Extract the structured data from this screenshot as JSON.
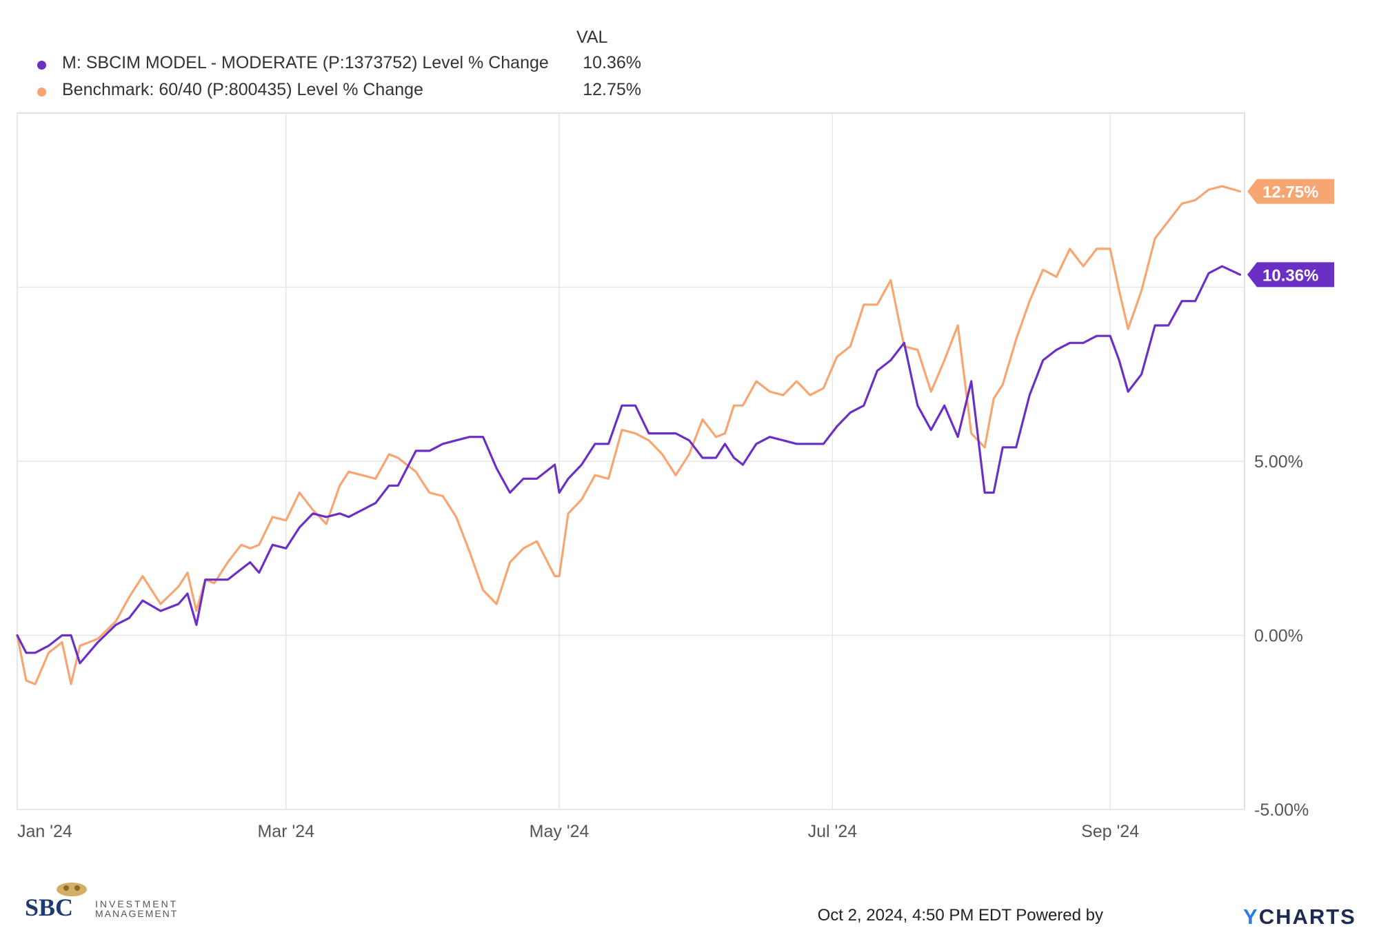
{
  "legend": {
    "value_header": "VAL",
    "entries": [
      {
        "name": "M: SBCIM MODEL - MODERATE (P:1373752) Level % Change",
        "value": "10.36%",
        "color": "#6a2fc4"
      },
      {
        "name": "Benchmark: 60/40 (P:800435) Level % Change",
        "value": "12.75%",
        "color": "#f7a571"
      }
    ]
  },
  "footer": {
    "timestamp": "Oct 2, 2024, 4:50 PM EDT Powered by",
    "logo_text": "YCHARTS"
  },
  "branding": {
    "logo_letters": "SBC",
    "logo_line1": "INVESTMENT",
    "logo_line2": "MANAGEMENT"
  },
  "chart_data": {
    "type": "line",
    "xlabel": "",
    "ylabel": "",
    "x_ticks": [
      "Jan '24",
      "Mar '24",
      "May '24",
      "Jul '24",
      "Sep '24"
    ],
    "x_tick_dates": [
      "2024-01-01",
      "2024-03-01",
      "2024-05-01",
      "2024-07-01",
      "2024-09-01"
    ],
    "x_range": [
      "2024-01-01",
      "2024-10-01"
    ],
    "y_ticks": [
      -5,
      0,
      5,
      10
    ],
    "y_tick_labels": [
      "-5.00%",
      "0.00%",
      "5.00%",
      ""
    ],
    "ylim": [
      -5,
      15
    ],
    "grid": true,
    "legend_position": "top-left",
    "series": [
      {
        "name": "M: SBCIM MODEL - MODERATE (P:1373752) Level % Change",
        "color": "#6a2fc4",
        "end_label": "10.36%",
        "x": [
          "2024-01-01",
          "2024-01-03",
          "2024-01-05",
          "2024-01-08",
          "2024-01-11",
          "2024-01-13",
          "2024-01-15",
          "2024-01-19",
          "2024-01-23",
          "2024-01-26",
          "2024-01-29",
          "2024-02-02",
          "2024-02-06",
          "2024-02-08",
          "2024-02-10",
          "2024-02-12",
          "2024-02-14",
          "2024-02-17",
          "2024-02-20",
          "2024-02-22",
          "2024-02-24",
          "2024-02-27",
          "2024-03-01",
          "2024-03-04",
          "2024-03-07",
          "2024-03-10",
          "2024-03-13",
          "2024-03-15",
          "2024-03-18",
          "2024-03-21",
          "2024-03-24",
          "2024-03-26",
          "2024-03-30",
          "2024-04-02",
          "2024-04-05",
          "2024-04-08",
          "2024-04-11",
          "2024-04-14",
          "2024-04-17",
          "2024-04-20",
          "2024-04-23",
          "2024-04-26",
          "2024-04-30",
          "2024-05-01",
          "2024-05-03",
          "2024-05-06",
          "2024-05-09",
          "2024-05-12",
          "2024-05-15",
          "2024-05-18",
          "2024-05-21",
          "2024-05-24",
          "2024-05-27",
          "2024-05-30",
          "2024-06-02",
          "2024-06-05",
          "2024-06-07",
          "2024-06-09",
          "2024-06-11",
          "2024-06-14",
          "2024-06-17",
          "2024-06-20",
          "2024-06-23",
          "2024-06-26",
          "2024-06-29",
          "2024-07-02",
          "2024-07-05",
          "2024-07-08",
          "2024-07-11",
          "2024-07-14",
          "2024-07-17",
          "2024-07-20",
          "2024-07-23",
          "2024-07-26",
          "2024-07-29",
          "2024-08-01",
          "2024-08-04",
          "2024-08-06",
          "2024-08-08",
          "2024-08-11",
          "2024-08-14",
          "2024-08-17",
          "2024-08-20",
          "2024-08-23",
          "2024-08-26",
          "2024-08-29",
          "2024-09-01",
          "2024-09-03",
          "2024-09-05",
          "2024-09-08",
          "2024-09-11",
          "2024-09-14",
          "2024-09-17",
          "2024-09-20",
          "2024-09-23",
          "2024-09-26",
          "2024-09-30"
        ],
        "y": [
          0.0,
          -0.5,
          -0.5,
          -0.3,
          0.0,
          0.0,
          -0.8,
          -0.2,
          0.3,
          0.5,
          1.0,
          0.7,
          0.9,
          1.2,
          0.3,
          1.6,
          1.6,
          1.6,
          1.9,
          2.1,
          1.8,
          2.6,
          2.5,
          3.1,
          3.5,
          3.4,
          3.5,
          3.4,
          3.6,
          3.8,
          4.3,
          4.3,
          5.3,
          5.3,
          5.5,
          5.6,
          5.7,
          5.7,
          4.8,
          4.1,
          4.5,
          4.5,
          4.9,
          4.1,
          4.5,
          4.9,
          5.5,
          5.5,
          6.6,
          6.6,
          5.8,
          5.8,
          5.8,
          5.6,
          5.1,
          5.1,
          5.5,
          5.1,
          4.9,
          5.5,
          5.7,
          5.6,
          5.5,
          5.5,
          5.5,
          6.0,
          6.4,
          6.6,
          7.6,
          7.9,
          8.4,
          6.6,
          5.9,
          6.6,
          5.7,
          7.3,
          4.1,
          4.1,
          5.4,
          5.4,
          6.9,
          7.9,
          8.2,
          8.4,
          8.4,
          8.6,
          8.6,
          7.9,
          7.0,
          7.5,
          8.9,
          8.9,
          9.6,
          9.6,
          10.4,
          10.6,
          10.36
        ]
      },
      {
        "name": "Benchmark: 60/40 (P:800435) Level % Change",
        "color": "#f7a571",
        "end_label": "12.75%",
        "x": [
          "2024-01-01",
          "2024-01-03",
          "2024-01-05",
          "2024-01-08",
          "2024-01-11",
          "2024-01-13",
          "2024-01-15",
          "2024-01-19",
          "2024-01-23",
          "2024-01-26",
          "2024-01-29",
          "2024-02-02",
          "2024-02-06",
          "2024-02-08",
          "2024-02-10",
          "2024-02-12",
          "2024-02-14",
          "2024-02-17",
          "2024-02-20",
          "2024-02-22",
          "2024-02-24",
          "2024-02-27",
          "2024-03-01",
          "2024-03-04",
          "2024-03-07",
          "2024-03-10",
          "2024-03-13",
          "2024-03-15",
          "2024-03-18",
          "2024-03-21",
          "2024-03-24",
          "2024-03-26",
          "2024-03-30",
          "2024-04-02",
          "2024-04-05",
          "2024-04-08",
          "2024-04-11",
          "2024-04-14",
          "2024-04-17",
          "2024-04-20",
          "2024-04-23",
          "2024-04-26",
          "2024-04-30",
          "2024-05-01",
          "2024-05-03",
          "2024-05-06",
          "2024-05-09",
          "2024-05-12",
          "2024-05-15",
          "2024-05-18",
          "2024-05-21",
          "2024-05-24",
          "2024-05-27",
          "2024-05-30",
          "2024-06-02",
          "2024-06-05",
          "2024-06-07",
          "2024-06-09",
          "2024-06-11",
          "2024-06-14",
          "2024-06-17",
          "2024-06-20",
          "2024-06-23",
          "2024-06-26",
          "2024-06-29",
          "2024-07-02",
          "2024-07-05",
          "2024-07-08",
          "2024-07-11",
          "2024-07-14",
          "2024-07-17",
          "2024-07-20",
          "2024-07-23",
          "2024-07-26",
          "2024-07-29",
          "2024-08-01",
          "2024-08-04",
          "2024-08-06",
          "2024-08-08",
          "2024-08-11",
          "2024-08-14",
          "2024-08-17",
          "2024-08-20",
          "2024-08-23",
          "2024-08-26",
          "2024-08-29",
          "2024-09-01",
          "2024-09-03",
          "2024-09-05",
          "2024-09-08",
          "2024-09-11",
          "2024-09-14",
          "2024-09-17",
          "2024-09-20",
          "2024-09-23",
          "2024-09-26",
          "2024-09-30"
        ],
        "y": [
          0.0,
          -1.3,
          -1.4,
          -0.5,
          -0.2,
          -1.4,
          -0.3,
          -0.1,
          0.4,
          1.1,
          1.7,
          0.9,
          1.4,
          1.8,
          0.7,
          1.6,
          1.5,
          2.1,
          2.6,
          2.5,
          2.6,
          3.4,
          3.3,
          4.1,
          3.6,
          3.2,
          4.3,
          4.7,
          4.6,
          4.5,
          5.2,
          5.1,
          4.7,
          4.1,
          4.0,
          3.4,
          2.4,
          1.3,
          0.9,
          2.1,
          2.5,
          2.7,
          1.7,
          1.7,
          3.5,
          3.9,
          4.6,
          4.5,
          5.9,
          5.8,
          5.6,
          5.2,
          4.6,
          5.2,
          6.2,
          5.7,
          5.8,
          6.6,
          6.6,
          7.3,
          7.0,
          6.9,
          7.3,
          6.9,
          7.1,
          8.0,
          8.3,
          9.5,
          9.5,
          10.2,
          8.3,
          8.2,
          7.0,
          7.9,
          8.9,
          5.8,
          5.4,
          6.8,
          7.2,
          8.5,
          9.6,
          10.5,
          10.3,
          11.1,
          10.6,
          11.1,
          11.1,
          9.9,
          8.8,
          9.9,
          11.4,
          11.9,
          12.4,
          12.5,
          12.8,
          12.9,
          12.75
        ]
      }
    ]
  }
}
